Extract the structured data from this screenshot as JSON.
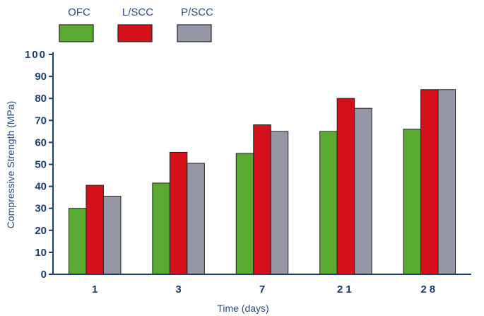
{
  "chart_data": {
    "type": "bar",
    "title": "",
    "xlabel": "Time (days)",
    "ylabel": "Compressive Strength (MPa)",
    "categories": [
      "1",
      "3",
      "7",
      "21",
      "28"
    ],
    "series": [
      {
        "name": "OFC",
        "color": "#5aaa32",
        "values": [
          30,
          41.5,
          55,
          65,
          66
        ]
      },
      {
        "name": "L/SCC",
        "color": "#d4111b",
        "values": [
          40.5,
          55.5,
          68,
          80,
          84
        ]
      },
      {
        "name": "P/SCC",
        "color": "#9597a6",
        "values": [
          35.5,
          50.5,
          65,
          75.5,
          84
        ]
      }
    ],
    "ylim": [
      0,
      100
    ],
    "yticks": [
      "0",
      "10",
      "20",
      "30",
      "40",
      "50",
      "60",
      "70",
      "80",
      "90",
      "100"
    ],
    "grid": false,
    "legend_position": "top-left"
  }
}
